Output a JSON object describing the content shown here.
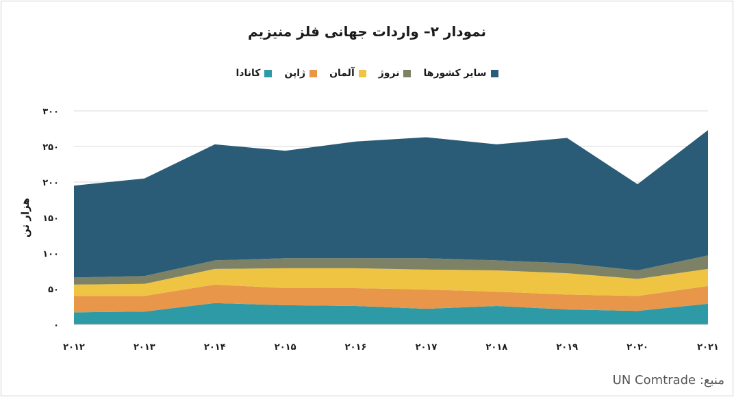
{
  "title": "نمودار ۲– واردات جهانی فلز منیزیم",
  "source": "منبع: UN Comtrade",
  "chart_data": {
    "type": "area",
    "stacked": true,
    "categories": [
      "۲۰۱۲",
      "۲۰۱۳",
      "۲۰۱۴",
      "۲۰۱۵",
      "۲۰۱۶",
      "۲۰۱۷",
      "۲۰۱۸",
      "۲۰۱۹",
      "۲۰۲۰",
      "۲۰۲۱"
    ],
    "ylabel": "هزار تن",
    "ylim": [
      0,
      300
    ],
    "yticks": [
      0,
      50,
      100,
      150,
      200,
      250,
      300
    ],
    "ytick_labels": [
      "۰",
      "۵۰",
      "۱۰۰",
      "۱۵۰",
      "۲۰۰",
      "۲۵۰",
      "۳۰۰"
    ],
    "grid": true,
    "legend_position": "top",
    "series": [
      {
        "name": "کانادا",
        "color": "#2E9AA6",
        "values": [
          17,
          18,
          30,
          27,
          26,
          22,
          26,
          21,
          19,
          29
        ]
      },
      {
        "name": "ژاپن",
        "color": "#E8974A",
        "values": [
          23,
          22,
          26,
          24,
          25,
          27,
          20,
          21,
          21,
          25
        ]
      },
      {
        "name": "آلمان",
        "color": "#EFC443",
        "values": [
          16,
          17,
          22,
          28,
          28,
          28,
          30,
          30,
          24,
          24
        ]
      },
      {
        "name": "نروژ",
        "color": "#7D8266",
        "values": [
          10,
          11,
          12,
          14,
          14,
          16,
          14,
          14,
          12,
          19
        ]
      },
      {
        "name": "سایر کشورها",
        "color": "#2B5C77",
        "values": [
          129,
          137,
          163,
          151,
          164,
          170,
          163,
          176,
          121,
          176
        ]
      }
    ]
  }
}
